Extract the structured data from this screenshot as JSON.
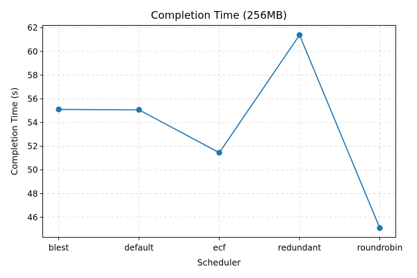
{
  "chart_data": {
    "type": "line",
    "title": "Completion Time (256MB)",
    "xlabel": "Scheduler",
    "ylabel": "Completion Time (s)",
    "categories": [
      "blest",
      "default",
      "ecf",
      "redundant",
      "roundrobin"
    ],
    "series": [
      {
        "values": [
          55.1,
          55.07,
          51.45,
          61.38,
          45.08
        ],
        "color": "#1f77b4"
      }
    ],
    "ylim": [
      44.3,
      62.2
    ],
    "yticks": [
      46,
      48,
      50,
      52,
      54,
      56,
      58,
      60,
      62
    ],
    "grid": true,
    "markers": "circle"
  }
}
